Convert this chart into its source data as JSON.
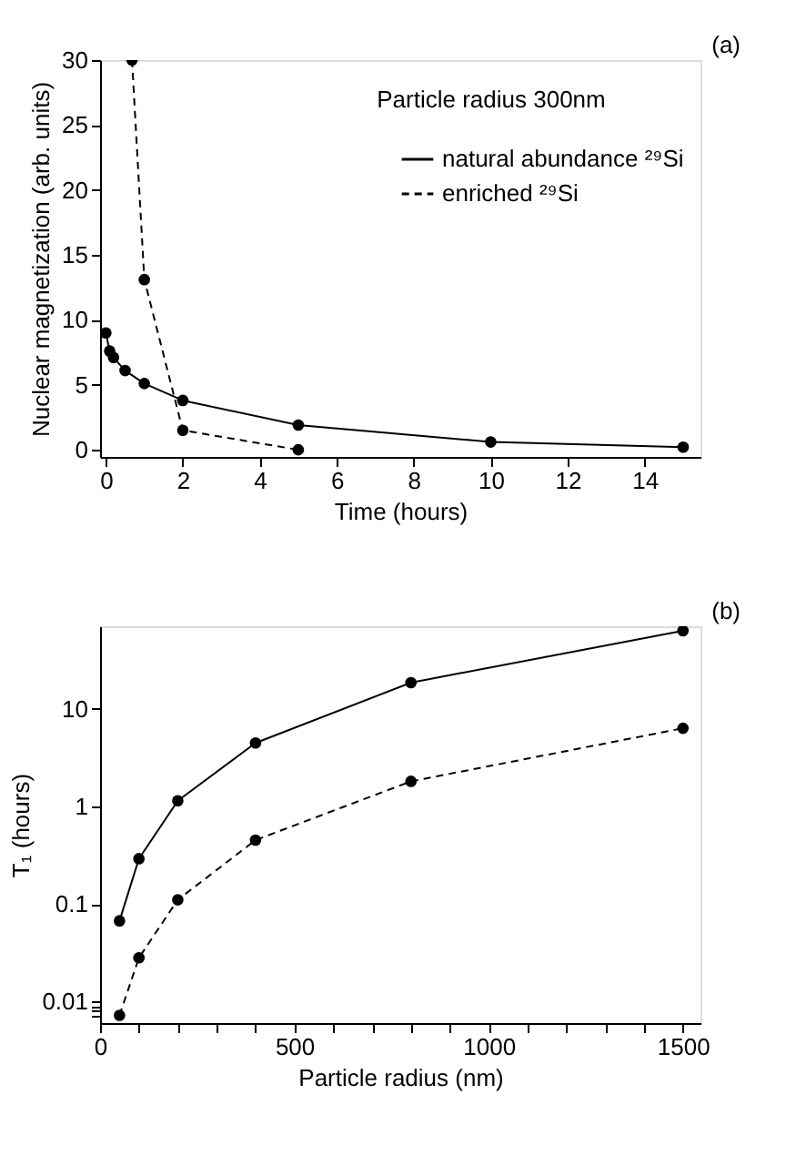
{
  "chart_data": [
    {
      "type": "line",
      "xlabel": "Time (hours)",
      "ylabel": "Nuclear magnetization (arb. units)",
      "annotations": [
        "(a)",
        "Particle radius 300nm"
      ],
      "xlim": [
        -0.15,
        15.45
      ],
      "ylim": [
        -0.55,
        30
      ],
      "xticks": [
        0,
        2,
        4,
        6,
        8,
        10,
        12,
        14
      ],
      "yticks": [
        0,
        5,
        10,
        15,
        20,
        25,
        30
      ],
      "grid": false,
      "legend": "top right",
      "marker": "circle",
      "series": [
        {
          "name": "natural abundance ²⁹Si",
          "color": "#000000",
          "line_style": "solid",
          "x": [
            0,
            0.1,
            0.2,
            0.5,
            1,
            2,
            5,
            10,
            15
          ],
          "values": [
            9.0,
            7.6,
            7.1,
            6.1,
            5.1,
            3.8,
            1.9,
            0.6,
            0.2
          ]
        },
        {
          "name": "enriched ²⁹Si",
          "color": "#000000",
          "line_style": "dashed",
          "x": [
            0.68,
            1,
            2,
            5
          ],
          "values": [
            30,
            13.1,
            1.5,
            0
          ]
        }
      ]
    },
    {
      "type": "line",
      "xlabel": "Particle radius (nm)",
      "ylabel": "T₁ (hours)",
      "annotations": [
        "(b)"
      ],
      "log": "y",
      "xlim": [
        0,
        1545
      ],
      "ylim": [
        0.006,
        70
      ],
      "xticks": [
        0,
        {
          "value": 100,
          "label": null
        },
        {
          "value": 200,
          "label": null
        },
        {
          "value": 300,
          "label": null
        },
        {
          "value": 400,
          "label": null
        },
        500,
        {
          "value": 600,
          "label": null
        },
        {
          "value": 700,
          "label": null
        },
        {
          "value": 800,
          "label": null
        },
        {
          "value": 900,
          "label": null
        },
        1000,
        {
          "value": 1100,
          "label": null
        },
        {
          "value": 1200,
          "label": null
        },
        {
          "value": 1300,
          "label": null
        },
        {
          "value": 1400,
          "label": null
        },
        1500
      ],
      "yticks": [
        {
          "value": 0.007,
          "label": null
        },
        {
          "value": 0.008,
          "label": null
        },
        {
          "value": 0.009,
          "label": null
        },
        0.01,
        0.1,
        1,
        10
      ],
      "grid": false,
      "legend": "bottom right",
      "marker": "circle",
      "series": [
        {
          "name": "natural abundance ²⁹Si",
          "color": "#000000",
          "line_style": "solid",
          "x": [
            50,
            100,
            200,
            400,
            800,
            1500
          ],
          "values": [
            0.067,
            0.29,
            1.14,
            4.45,
            18.5,
            63
          ]
        },
        {
          "name": "enriched ²⁹Si",
          "color": "#000000",
          "line_style": "dashed",
          "x": [
            50,
            100,
            200,
            400,
            800,
            1500
          ],
          "values": [
            0.0072,
            0.028,
            0.11,
            0.45,
            1.8,
            6.3
          ]
        }
      ]
    }
  ]
}
